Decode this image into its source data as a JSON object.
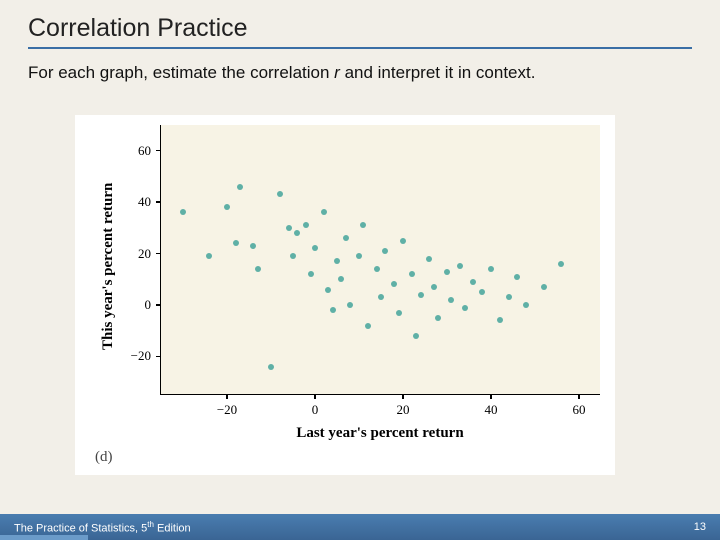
{
  "title": "Correlation Practice",
  "subtitle_pre": "For each graph, estimate the correlation ",
  "subtitle_r": "r",
  "subtitle_post": " and interpret it in context.",
  "footer_left_a": "The Practice of Statistics, 5",
  "footer_left_sup": "th",
  "footer_left_b": " Edition",
  "page_number": "13",
  "chart": {
    "type": "scatter",
    "panel_letter": "(d)",
    "background_color": "#f7f3e5",
    "page_bg": "#ffffff",
    "point_color": "#5fb0a6",
    "point_radius": 3,
    "xlabel": "Last year's percent return",
    "ylabel": "This year's percent return",
    "label_fontsize": 15,
    "tick_fontsize": 13,
    "xlim": [
      -35,
      65
    ],
    "ylim": [
      -35,
      70
    ],
    "xticks": [
      -20,
      0,
      20,
      40,
      60
    ],
    "yticks": [
      -20,
      0,
      20,
      40,
      60
    ],
    "data": [
      [
        -30,
        36
      ],
      [
        -24,
        19
      ],
      [
        -20,
        38
      ],
      [
        -18,
        24
      ],
      [
        -17,
        46
      ],
      [
        -14,
        23
      ],
      [
        -13,
        14
      ],
      [
        -10,
        -24
      ],
      [
        -8,
        43
      ],
      [
        -6,
        30
      ],
      [
        -5,
        19
      ],
      [
        -4,
        28
      ],
      [
        -2,
        31
      ],
      [
        -1,
        12
      ],
      [
        0,
        22
      ],
      [
        2,
        36
      ],
      [
        3,
        6
      ],
      [
        4,
        -2
      ],
      [
        5,
        17
      ],
      [
        6,
        10
      ],
      [
        7,
        26
      ],
      [
        8,
        0
      ],
      [
        10,
        19
      ],
      [
        11,
        31
      ],
      [
        12,
        -8
      ],
      [
        14,
        14
      ],
      [
        15,
        3
      ],
      [
        16,
        21
      ],
      [
        18,
        8
      ],
      [
        19,
        -3
      ],
      [
        20,
        25
      ],
      [
        22,
        12
      ],
      [
        23,
        -12
      ],
      [
        24,
        4
      ],
      [
        26,
        18
      ],
      [
        27,
        7
      ],
      [
        28,
        -5
      ],
      [
        30,
        13
      ],
      [
        31,
        2
      ],
      [
        33,
        15
      ],
      [
        34,
        -1
      ],
      [
        36,
        9
      ],
      [
        38,
        5
      ],
      [
        40,
        14
      ],
      [
        42,
        -6
      ],
      [
        44,
        3
      ],
      [
        46,
        11
      ],
      [
        48,
        0
      ],
      [
        52,
        7
      ],
      [
        56,
        16
      ]
    ]
  }
}
